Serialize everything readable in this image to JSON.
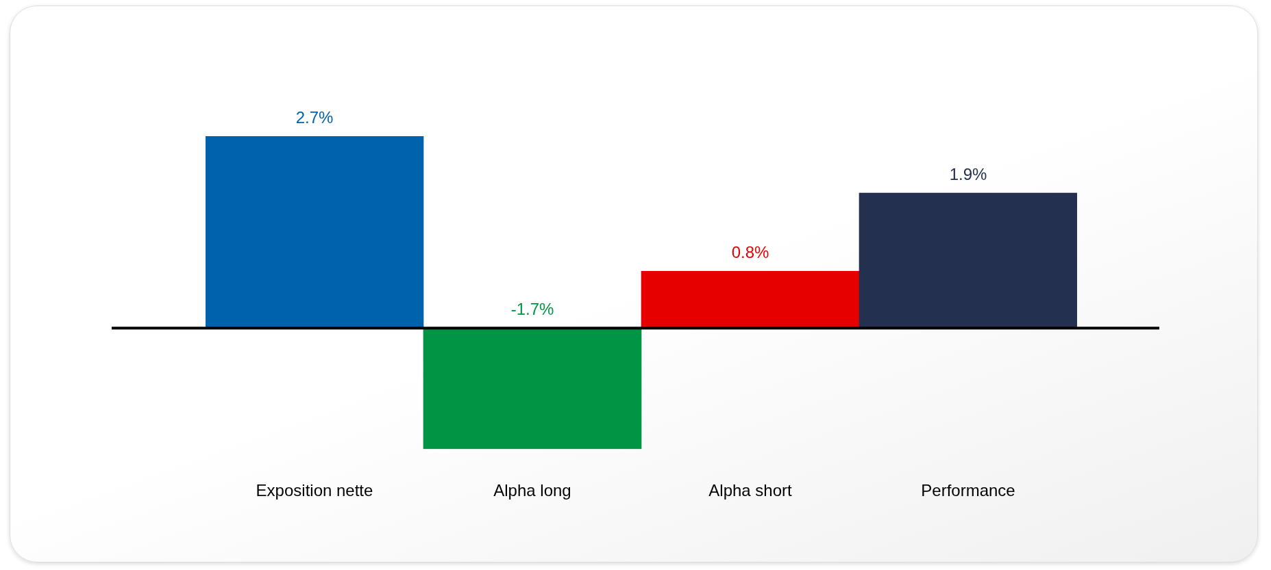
{
  "chart_data": {
    "type": "bar",
    "categories": [
      "Exposition nette",
      "Alpha long",
      "Alpha short",
      "Performance"
    ],
    "values": [
      2.7,
      -1.7,
      0.8,
      1.9
    ],
    "colors": [
      "#0062ad",
      "#009444",
      "#e60000",
      "#243050"
    ],
    "value_labels": [
      "2.7%",
      "-1.7%",
      "0.8%",
      "1.9%"
    ]
  }
}
